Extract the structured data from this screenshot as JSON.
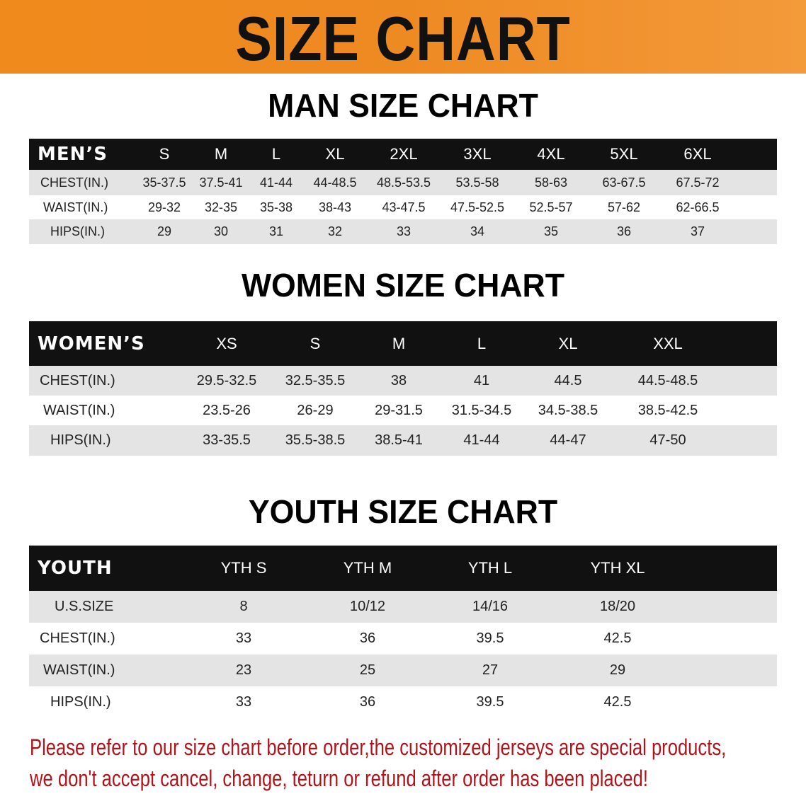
{
  "banner": {
    "title": "SIZE CHART"
  },
  "men": {
    "title": "MAN SIZE CHART",
    "header": [
      "MEN’S",
      "S",
      "M",
      "L",
      "XL",
      "2XL",
      "3XL",
      "4XL",
      "5XL",
      "6XL"
    ],
    "rows": [
      [
        "CHEST(IN.)",
        "35-37.5",
        "37.5-41",
        "41-44",
        "44-48.5",
        "48.5-53.5",
        "53.5-58",
        "58-63",
        "63-67.5",
        "67.5-72"
      ],
      [
        "WAIST(IN.)",
        "29-32",
        "32-35",
        "35-38",
        "38-43",
        "43-47.5",
        "47.5-52.5",
        "52.5-57",
        "57-62",
        "62-66.5"
      ],
      [
        "HIPS(IN.)",
        "29",
        "30",
        "31",
        "32",
        "33",
        "34",
        "35",
        "36",
        "37"
      ]
    ]
  },
  "women": {
    "title": "WOMEN SIZE CHART",
    "header": [
      "WOMEN’S",
      "XS",
      "S",
      "M",
      "L",
      "XL",
      "XXL"
    ],
    "rows": [
      [
        "CHEST(IN.)",
        "29.5-32.5",
        "32.5-35.5",
        "38",
        "41",
        "44.5",
        "44.5-48.5"
      ],
      [
        "WAIST(IN.)",
        "23.5-26",
        "26-29",
        "29-31.5",
        "31.5-34.5",
        "34.5-38.5",
        "38.5-42.5"
      ],
      [
        "HIPS(IN.)",
        "33-35.5",
        "35.5-38.5",
        "38.5-41",
        "41-44",
        "44-47",
        "47-50"
      ]
    ]
  },
  "youth": {
    "title": "YOUTH SIZE CHART",
    "header": [
      "YOUTH",
      "YTH S",
      "YTH M",
      "YTH L",
      "YTH XL"
    ],
    "rows": [
      [
        "U.S.SIZE",
        "8",
        "10/12",
        "14/16",
        "18/20"
      ],
      [
        "CHEST(IN.)",
        "33",
        "36",
        "39.5",
        "42.5"
      ],
      [
        "WAIST(IN.)",
        "23",
        "25",
        "27",
        "29"
      ],
      [
        "HIPS(IN.)",
        "33",
        "36",
        "39.5",
        "42.5"
      ]
    ]
  },
  "notice": {
    "line1": "Please refer to our size chart before order,the customized jerseys are special products,",
    "line2": "we don't accept cancel, change, teturn or refund after order has been placed!"
  },
  "colors": {
    "banner": "#f08a1c",
    "header_row": "#111111",
    "stripe": "#e4e4e4",
    "notice": "#b0141a"
  }
}
